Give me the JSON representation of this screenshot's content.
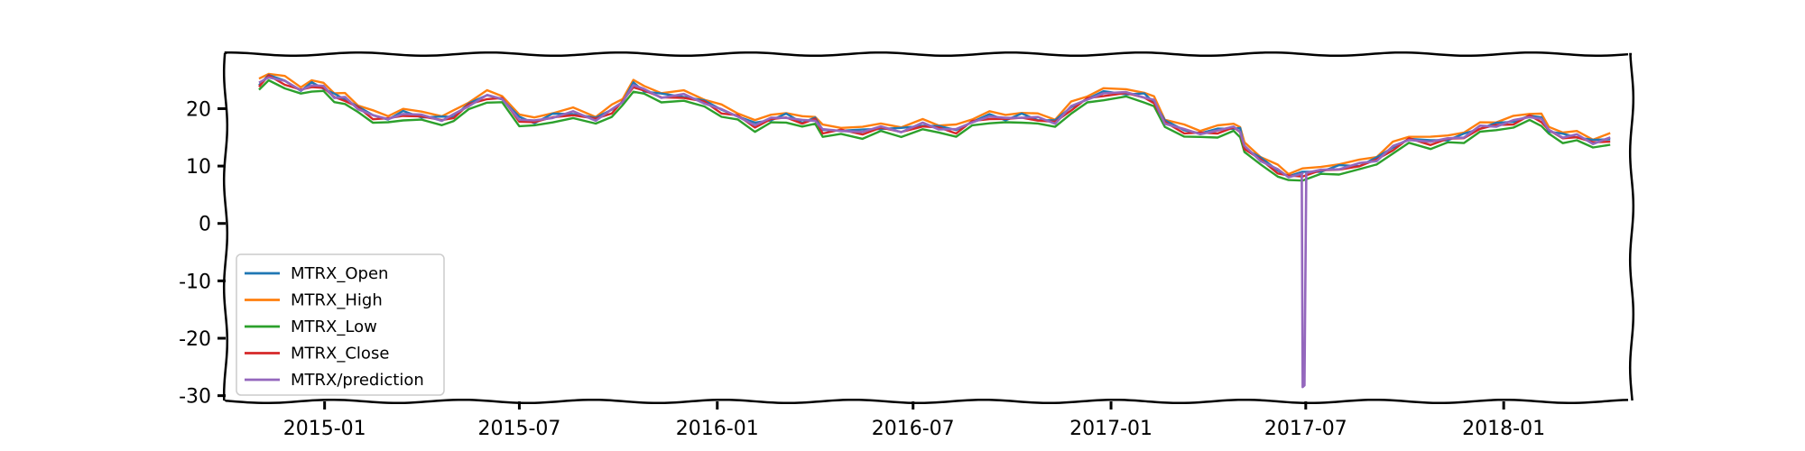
{
  "chart_data": {
    "type": "line",
    "title": "",
    "xlabel": "",
    "ylabel": "",
    "xlim": [
      "2014-10-01",
      "2018-04-30"
    ],
    "ylim": [
      -31,
      29.5
    ],
    "x_ticks": [
      "2015-01",
      "2015-07",
      "2016-01",
      "2016-07",
      "2017-01",
      "2017-07",
      "2018-01"
    ],
    "y_ticks": [
      20,
      10,
      0,
      -10,
      -20,
      -30
    ],
    "legend_position": "lower-left",
    "grid": false,
    "colors": {
      "MTRX_Open": "#1f77b4",
      "MTRX_High": "#ff7f0e",
      "MTRX_Low": "#2ca02c",
      "MTRX_Close": "#d62728",
      "MTRX/prediction": "#9467bd"
    },
    "base_path": [
      [
        "2014-11-01",
        24.0
      ],
      [
        "2014-11-10",
        25.5
      ],
      [
        "2014-11-25",
        24.5
      ],
      [
        "2014-12-10",
        23.0
      ],
      [
        "2014-12-20",
        24.0
      ],
      [
        "2014-12-31",
        23.5
      ],
      [
        "2015-01-10",
        22.0
      ],
      [
        "2015-01-20",
        21.5
      ],
      [
        "2015-02-01",
        20.0
      ],
      [
        "2015-02-15",
        18.5
      ],
      [
        "2015-03-01",
        18.0
      ],
      [
        "2015-03-15",
        19.0
      ],
      [
        "2015-04-01",
        18.5
      ],
      [
        "2015-04-20",
        18.0
      ],
      [
        "2015-05-01",
        18.5
      ],
      [
        "2015-05-15",
        20.5
      ],
      [
        "2015-06-01",
        22.0
      ],
      [
        "2015-06-15",
        21.5
      ],
      [
        "2015-07-01",
        18.0
      ],
      [
        "2015-07-15",
        17.5
      ],
      [
        "2015-08-01",
        18.5
      ],
      [
        "2015-08-20",
        19.0
      ],
      [
        "2015-09-10",
        18.0
      ],
      [
        "2015-09-25",
        19.5
      ],
      [
        "2015-10-05",
        21.0
      ],
      [
        "2015-10-15",
        24.0
      ],
      [
        "2015-10-25",
        23.0
      ],
      [
        "2015-11-10",
        22.0
      ],
      [
        "2015-12-01",
        22.0
      ],
      [
        "2015-12-20",
        21.0
      ],
      [
        "2016-01-05",
        19.5
      ],
      [
        "2016-01-20",
        18.5
      ],
      [
        "2016-02-05",
        17.0
      ],
      [
        "2016-02-20",
        18.0
      ],
      [
        "2016-03-05",
        18.5
      ],
      [
        "2016-03-20",
        17.5
      ],
      [
        "2016-04-01",
        18.0
      ],
      [
        "2016-04-08",
        16.0
      ],
      [
        "2016-04-25",
        16.0
      ],
      [
        "2016-05-15",
        15.8
      ],
      [
        "2016-06-01",
        16.5
      ],
      [
        "2016-06-20",
        16.0
      ],
      [
        "2016-07-10",
        17.0
      ],
      [
        "2016-07-25",
        16.5
      ],
      [
        "2016-08-10",
        16.0
      ],
      [
        "2016-08-25",
        17.5
      ],
      [
        "2016-09-10",
        18.5
      ],
      [
        "2016-09-25",
        18.0
      ],
      [
        "2016-10-10",
        18.5
      ],
      [
        "2016-10-25",
        18.0
      ],
      [
        "2016-11-10",
        17.5
      ],
      [
        "2016-11-25",
        20.0
      ],
      [
        "2016-12-10",
        21.5
      ],
      [
        "2016-12-25",
        22.5
      ],
      [
        "2017-01-15",
        22.5
      ],
      [
        "2017-02-01",
        22.0
      ],
      [
        "2017-02-10",
        21.0
      ],
      [
        "2017-02-20",
        17.5
      ],
      [
        "2017-03-10",
        16.0
      ],
      [
        "2017-03-25",
        15.5
      ],
      [
        "2017-04-10",
        16.0
      ],
      [
        "2017-04-25",
        16.5
      ],
      [
        "2017-05-01",
        16.0
      ],
      [
        "2017-05-05",
        13.0
      ],
      [
        "2017-05-20",
        11.0
      ],
      [
        "2017-06-05",
        9.0
      ],
      [
        "2017-06-15",
        8.0
      ],
      [
        "2017-06-28",
        8.5
      ],
      [
        "2017-07-15",
        9.0
      ],
      [
        "2017-08-01",
        9.5
      ],
      [
        "2017-08-20",
        10.0
      ],
      [
        "2017-09-05",
        11.0
      ],
      [
        "2017-09-20",
        13.0
      ],
      [
        "2017-10-05",
        14.5
      ],
      [
        "2017-10-25",
        14.0
      ],
      [
        "2017-11-10",
        14.5
      ],
      [
        "2017-11-25",
        15.0
      ],
      [
        "2017-12-10",
        16.5
      ],
      [
        "2017-12-25",
        17.0
      ],
      [
        "2018-01-10",
        17.5
      ],
      [
        "2018-01-25",
        18.5
      ],
      [
        "2018-02-05",
        18.0
      ],
      [
        "2018-02-12",
        16.0
      ],
      [
        "2018-02-25",
        15.0
      ],
      [
        "2018-03-10",
        15.0
      ],
      [
        "2018-03-25",
        14.0
      ],
      [
        "2018-04-10",
        14.5
      ]
    ],
    "series": [
      {
        "name": "MTRX_Open",
        "offset": 0.3
      },
      {
        "name": "MTRX_High",
        "offset": 0.9
      },
      {
        "name": "MTRX_Low",
        "offset": -0.7
      },
      {
        "name": "MTRX_Close",
        "offset": 0.0
      },
      {
        "name": "MTRX/prediction",
        "offset": 0.2,
        "spike": {
          "date": "2017-06-29",
          "low": -28.5
        }
      }
    ]
  }
}
